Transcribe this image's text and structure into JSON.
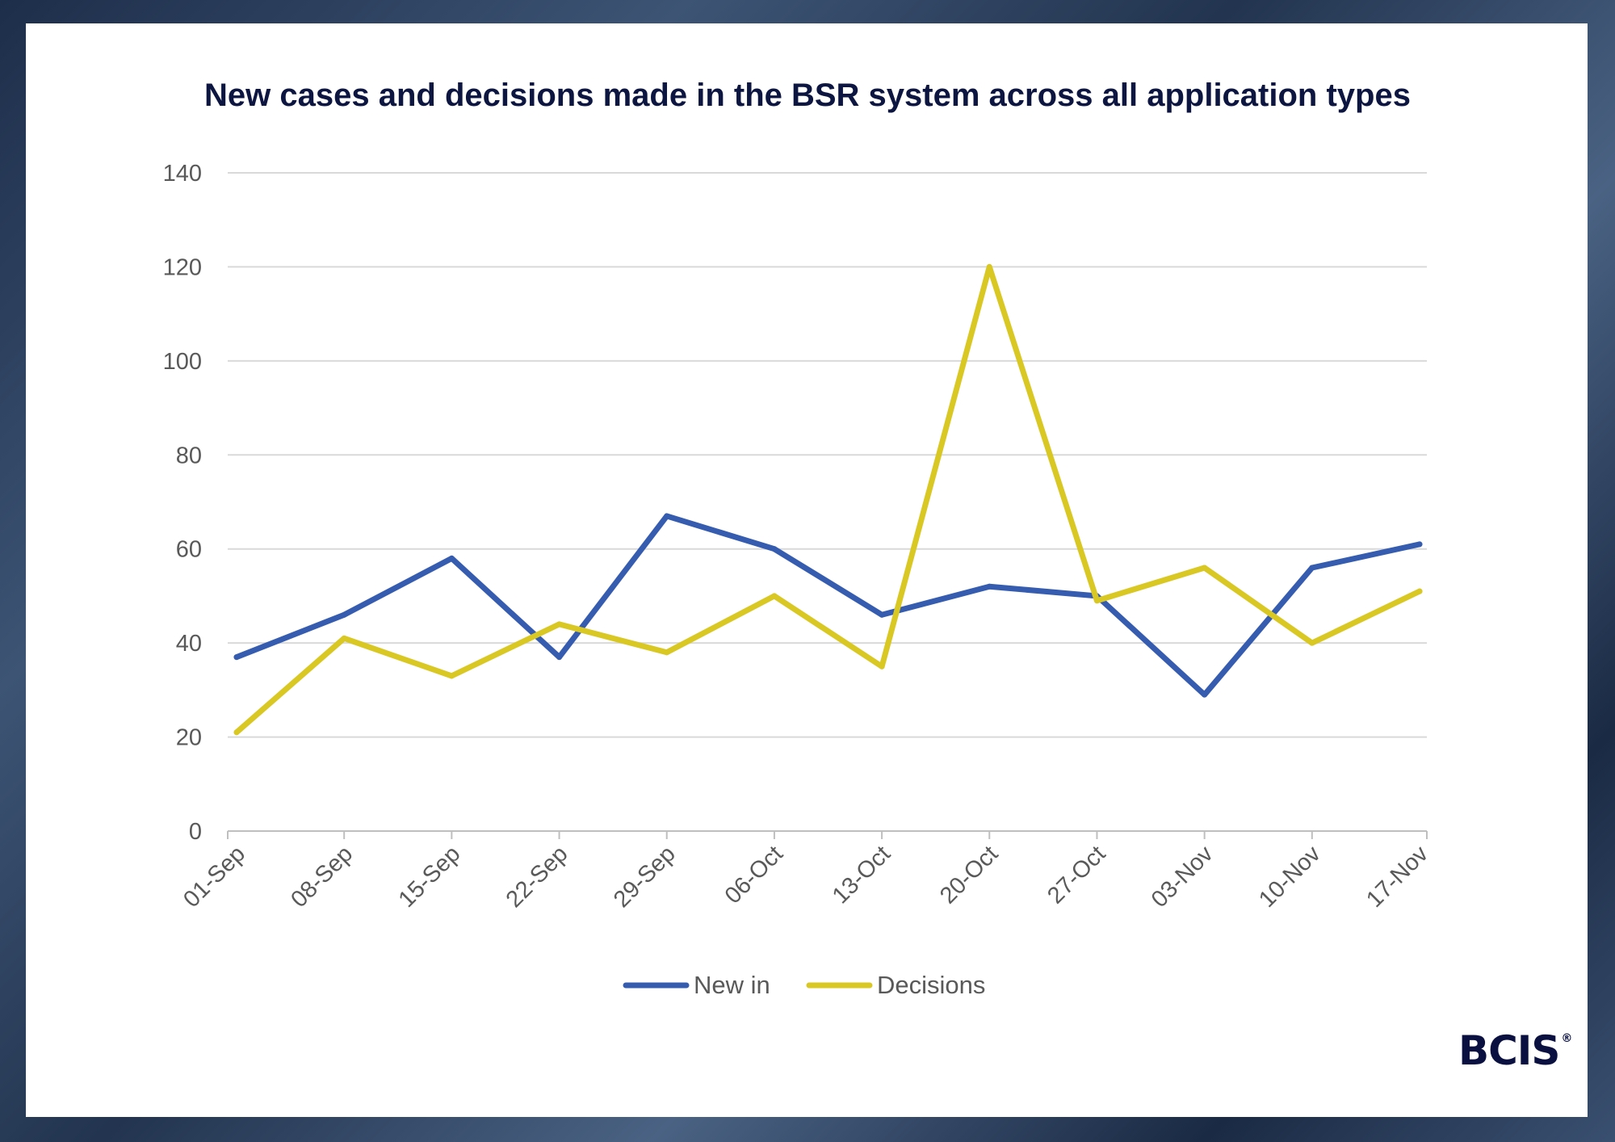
{
  "chart_data": {
    "type": "line",
    "title": "New cases and decisions made in the BSR system across all application types",
    "categories": [
      "01-Sep",
      "08-Sep",
      "15-Sep",
      "22-Sep",
      "29-Sep",
      "06-Oct",
      "13-Oct",
      "20-Oct",
      "27-Oct",
      "03-Nov",
      "10-Nov",
      "17-Nov"
    ],
    "series": [
      {
        "name": "New in",
        "color": "#355caf",
        "values": [
          37,
          46,
          58,
          37,
          67,
          60,
          46,
          52,
          50,
          29,
          56,
          61
        ]
      },
      {
        "name": "Decisions",
        "color": "#d9c824",
        "values": [
          21,
          41,
          33,
          44,
          38,
          50,
          35,
          120,
          49,
          56,
          40,
          51
        ]
      }
    ],
    "ylim": [
      0,
      140
    ],
    "yticks": [
      0,
      20,
      40,
      60,
      80,
      100,
      120,
      140
    ],
    "xlabel": "",
    "ylabel": "",
    "grid": true,
    "legend": "bottom"
  },
  "brand": {
    "logo": "BCIS",
    "mark": "®"
  }
}
